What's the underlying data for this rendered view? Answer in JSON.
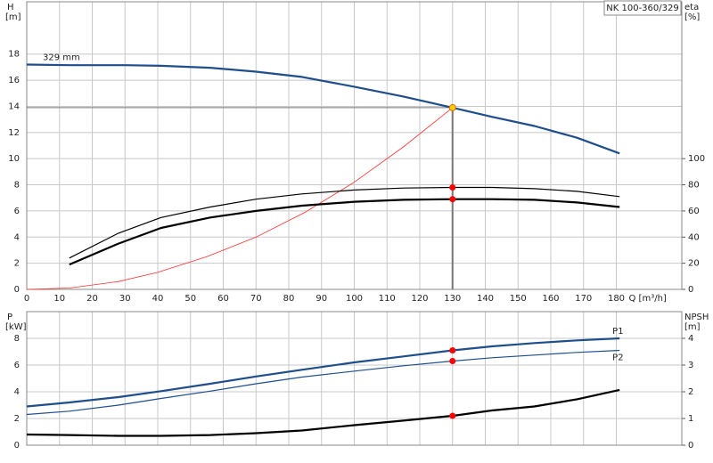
{
  "chart_data": [
    {
      "type": "line",
      "title": "NK 100-360/329",
      "ylabel": "H",
      "yunit": "[m]",
      "y2label": "eta",
      "y2unit": "[%]",
      "xlabel": "Q [m³/h]",
      "xlim": [
        0,
        200
      ],
      "xticks": [
        0,
        10,
        20,
        30,
        40,
        50,
        60,
        70,
        80,
        90,
        100,
        110,
        120,
        130,
        140,
        150,
        160,
        170,
        180
      ],
      "show_xtick_labels": true,
      "ylim": [
        0,
        22
      ],
      "yticks": [
        0,
        2,
        4,
        6,
        8,
        10,
        12,
        14,
        16,
        18
      ],
      "y2lim": [
        0,
        220
      ],
      "y2ticks": [
        0,
        20,
        40,
        60,
        80,
        100
      ],
      "grid": true,
      "series": [
        {
          "name": "329 mm",
          "label_at": "start",
          "color": "#1f4e8c",
          "style": "thick",
          "axis": "y",
          "x": [
            0,
            13,
            30,
            41,
            56,
            70,
            84,
            100,
            115,
            130,
            142,
            155,
            168,
            181
          ],
          "values": [
            17.2,
            17.15,
            17.15,
            17.1,
            16.95,
            16.65,
            16.25,
            15.5,
            14.75,
            13.9,
            13.2,
            12.5,
            11.6,
            10.4
          ]
        },
        {
          "color": "#ff3030",
          "style": "hair",
          "axis": "y",
          "x": [
            0,
            13,
            28,
            40,
            55,
            70,
            85,
            100,
            115,
            130
          ],
          "values": [
            0,
            0.1,
            0.6,
            1.3,
            2.5,
            4,
            5.9,
            8.2,
            10.9,
            13.9
          ]
        },
        {
          "color": "#000000",
          "style": "thin",
          "axis": "y2",
          "x": [
            13,
            28,
            41,
            56,
            70,
            84,
            100,
            115,
            130,
            142,
            155,
            168,
            181
          ],
          "values": [
            24,
            43,
            55,
            63,
            69,
            73,
            76,
            77.5,
            78,
            78,
            77,
            75,
            71
          ]
        },
        {
          "color": "#000000",
          "style": "thick",
          "axis": "y2",
          "x": [
            13,
            28,
            41,
            56,
            70,
            84,
            100,
            115,
            130,
            142,
            155,
            168,
            181
          ],
          "values": [
            19,
            35,
            47,
            55,
            60,
            64,
            67,
            68.5,
            69,
            69,
            68.5,
            66.5,
            63
          ]
        }
      ],
      "crosshair": {
        "x": 130,
        "y": 13.9
      },
      "points": [
        {
          "x": 130,
          "y": 13.9,
          "axis": "y",
          "color": "#ffcc00"
        },
        {
          "x": 130,
          "y": 78,
          "axis": "y2",
          "color": "#ff0000"
        },
        {
          "x": 130,
          "y": 69,
          "axis": "y2",
          "color": "#ff0000"
        }
      ]
    },
    {
      "type": "line",
      "ylabel": "P",
      "yunit": "[kW]",
      "y2label": "NPSH",
      "y2unit": "[m]",
      "xlim": [
        0,
        200
      ],
      "xticks": [
        0,
        10,
        20,
        30,
        40,
        50,
        60,
        70,
        80,
        90,
        100,
        110,
        120,
        130,
        140,
        150,
        160,
        170,
        180
      ],
      "show_xtick_labels": false,
      "ylim": [
        0,
        10
      ],
      "yticks": [
        0,
        2,
        4,
        6,
        8
      ],
      "y2lim": [
        0,
        5
      ],
      "y2ticks": [
        0,
        1,
        2,
        3,
        4
      ],
      "grid": true,
      "series": [
        {
          "name": "P1",
          "label_at": "end",
          "color": "#1f4e8c",
          "style": "thick",
          "axis": "y",
          "x": [
            0,
            13,
            28,
            41,
            56,
            70,
            84,
            100,
            115,
            130,
            142,
            155,
            168,
            181
          ],
          "values": [
            2.9,
            3.2,
            3.6,
            4.05,
            4.6,
            5.15,
            5.65,
            6.2,
            6.65,
            7.1,
            7.4,
            7.65,
            7.85,
            8.0
          ]
        },
        {
          "name": "P2",
          "label_at": "end",
          "color": "#1f4e8c",
          "style": "thin",
          "axis": "y",
          "x": [
            0,
            13,
            28,
            41,
            56,
            70,
            84,
            100,
            115,
            130,
            142,
            155,
            168,
            181
          ],
          "values": [
            2.3,
            2.55,
            3.0,
            3.5,
            4.05,
            4.6,
            5.1,
            5.55,
            5.95,
            6.3,
            6.55,
            6.75,
            6.95,
            7.1
          ]
        },
        {
          "color": "#000000",
          "style": "thick",
          "axis": "y2",
          "x": [
            0,
            13,
            28,
            41,
            56,
            70,
            84,
            100,
            115,
            130,
            142,
            155,
            168,
            181
          ],
          "values": [
            0.4,
            0.38,
            0.35,
            0.35,
            0.38,
            0.45,
            0.55,
            0.75,
            0.92,
            1.1,
            1.3,
            1.45,
            1.72,
            2.07
          ]
        }
      ],
      "points": [
        {
          "x": 130,
          "y": 7.1,
          "axis": "y",
          "color": "#ff0000"
        },
        {
          "x": 130,
          "y": 6.3,
          "axis": "y",
          "color": "#ff0000"
        },
        {
          "x": 130,
          "y": 1.1,
          "axis": "y2",
          "color": "#ff0000"
        }
      ]
    }
  ]
}
